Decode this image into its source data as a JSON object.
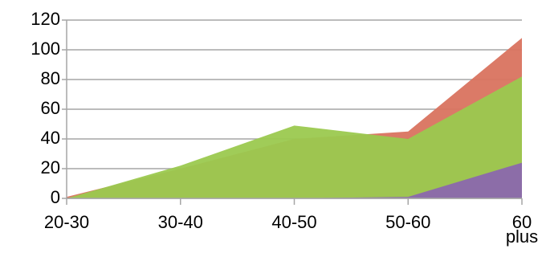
{
  "chart_data": {
    "type": "area",
    "categories": [
      "20-30",
      "30-40",
      "40-50",
      "50-60",
      "60 plus"
    ],
    "series": [
      {
        "color": "#d9735f",
        "values": [
          1,
          20,
          40,
          45,
          108
        ]
      },
      {
        "color": "#9bc94f",
        "values": [
          0,
          22,
          49,
          40,
          82
        ]
      },
      {
        "color": "#8b68ad",
        "values": [
          0,
          0,
          0,
          1,
          24
        ]
      }
    ],
    "ylim": [
      0,
      120
    ],
    "yticks": [
      0,
      20,
      40,
      60,
      80,
      100,
      120
    ],
    "grid": true
  }
}
